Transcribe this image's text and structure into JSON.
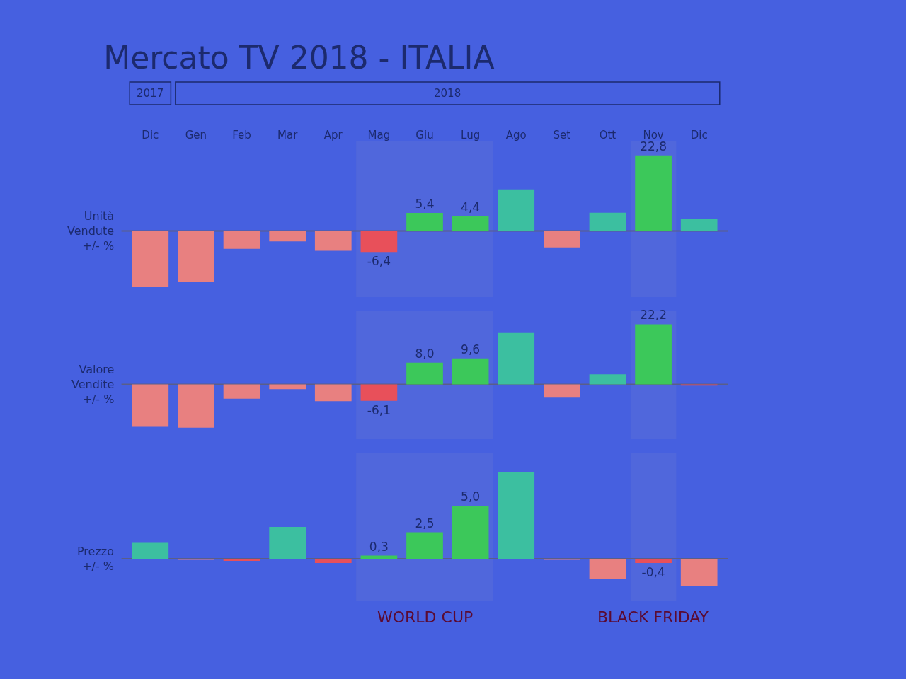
{
  "chart_data": [
    {
      "type": "bar",
      "title": "Mercato TV 2018 - ITALIA",
      "ylabel": "Unità Vendute +/- %",
      "annotations": [
        "2017",
        "2018"
      ],
      "tick_labels": "x",
      "categories": [
        "Dic",
        "Gen",
        "Feb",
        "Mar",
        "Apr",
        "Mag",
        "Giu",
        "Lug",
        "Ago",
        "Set",
        "Ott",
        "Nov",
        "Dic"
      ],
      "values": [
        -17,
        -15.5,
        -5.4,
        -3.2,
        -6,
        -6.4,
        5.4,
        4.4,
        12.5,
        -5,
        5.5,
        22.8,
        3.5
      ],
      "value_labels": [
        null,
        null,
        null,
        null,
        null,
        "-6,4",
        "5,4",
        "4,4",
        null,
        null,
        null,
        "22,8",
        null
      ],
      "colors": [
        "#e88080",
        "#e88080",
        "#e88080",
        "#e88080",
        "#e88080",
        "#e8505a",
        "#3cc85a",
        "#3cc85a",
        "#3cbfa0",
        "#e88080",
        "#3cbfa0",
        "#3cc85a",
        "#3cbfa0"
      ],
      "ylim": [
        -20,
        27
      ],
      "ref_lines": [
        {
          "axis": "y",
          "value": 0,
          "color": "#5a5e88"
        }
      ],
      "bands": [
        {
          "axis": "x",
          "from": "Mag",
          "to": "Lug",
          "color": "#5a6ed8"
        },
        {
          "axis": "x",
          "from": "Nov",
          "to": "Nov",
          "color": "#5a6ed8"
        }
      ]
    },
    {
      "type": "bar",
      "ylabel": "Valore Vendite +/- %",
      "tick_labels": false,
      "categories": [
        "Dic",
        "Gen",
        "Feb",
        "Mar",
        "Apr",
        "Mag",
        "Giu",
        "Lug",
        "Ago",
        "Set",
        "Ott",
        "Nov",
        "Dic"
      ],
      "values": [
        -15.7,
        -16,
        -5.3,
        -1.8,
        -6.2,
        -6.1,
        8.0,
        9.6,
        19,
        -4.9,
        3.7,
        22.2,
        -0.5
      ],
      "value_labels": [
        null,
        null,
        null,
        null,
        null,
        "-6,1",
        "8,0",
        "9,6",
        null,
        null,
        null,
        "22,2",
        null
      ],
      "colors": [
        "#e88080",
        "#e88080",
        "#e88080",
        "#e88080",
        "#e88080",
        "#e8505a",
        "#3cc85a",
        "#3cc85a",
        "#3cbfa0",
        "#e88080",
        "#3cbfa0",
        "#3cc85a",
        "#e8505a"
      ],
      "ylim": [
        -20,
        27
      ],
      "ref_lines": [
        {
          "axis": "y",
          "value": 0,
          "color": "#5a5e88"
        }
      ],
      "bands": [
        {
          "axis": "x",
          "from": "Mag",
          "to": "Lug",
          "color": "#5a6ed8"
        },
        {
          "axis": "x",
          "from": "Nov",
          "to": "Nov",
          "color": "#5a6ed8"
        }
      ]
    },
    {
      "type": "bar",
      "ylabel": "Prezzo +/- %",
      "tick_labels": false,
      "categories": [
        "Dic",
        "Gen",
        "Feb",
        "Mar",
        "Apr",
        "Mag",
        "Giu",
        "Lug",
        "Ago",
        "Set",
        "Ott",
        "Nov",
        "Dic"
      ],
      "values": [
        1.5,
        -0.1,
        -0.2,
        3.0,
        -0.4,
        0.3,
        2.5,
        5.0,
        8.2,
        -0.1,
        -1.9,
        -0.4,
        -2.6
      ],
      "value_labels": [
        null,
        null,
        null,
        null,
        null,
        "0,3",
        "2,5",
        "5,0",
        null,
        null,
        null,
        "-0,4",
        null
      ],
      "colors": [
        "#3cbfa0",
        "#e88080",
        "#e8505a",
        "#3cbfa0",
        "#e8505a",
        "#3cc85a",
        "#3cc85a",
        "#3cc85a",
        "#3cbfa0",
        "#e88080",
        "#e88080",
        "#e8505a",
        "#e88080"
      ],
      "ylim": [
        -4,
        10
      ],
      "ref_lines": [
        {
          "axis": "y",
          "value": 0,
          "color": "#5a5e88"
        }
      ],
      "bands": [
        {
          "axis": "x",
          "from": "Mag",
          "to": "Lug",
          "label": "WORLD CUP",
          "color": "#5a6ed8"
        },
        {
          "axis": "x",
          "from": "Nov",
          "to": "Nov",
          "label": "BLACK FRIDAY",
          "color": "#5a6ed8"
        }
      ]
    }
  ]
}
